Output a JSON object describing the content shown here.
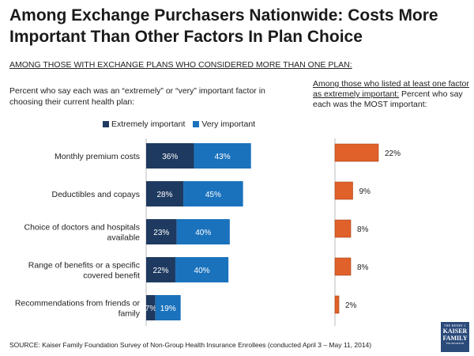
{
  "title": "Among Exchange Purchasers Nationwide: Costs More Important Than Other Factors In Plan Choice",
  "subhead": "AMONG THOSE WITH EXCHANGE PLANS WHO CONSIDERED MORE THAN ONE PLAN:",
  "left_desc": "Percent who say each was an “extremely” or “very” important factor in choosing their current health plan:",
  "right_desc_underlined": "Among those who listed at least one factor as extremely important:",
  "right_desc_rest": " Percent who say each was the MOST important:",
  "legend": [
    {
      "label": "Extremely important",
      "color": "#1f3a60"
    },
    {
      "label": "Very important",
      "color": "#1a72bd"
    }
  ],
  "footer": "SOURCE: Kaiser Family Foundation Survey of Non-Group Health Insurance Enrollees (conducted April 3 – May 11, 2014)",
  "logo": {
    "line1": "THE HENRY J.",
    "line2a": "KAISER",
    "line2b": "FAMILY",
    "line3": "FOUNDATION"
  },
  "chart_data": [
    {
      "type": "bar",
      "orientation": "horizontal",
      "stacked": true,
      "categories": [
        [
          "Monthly premium costs"
        ],
        [
          "Deductibles and copays"
        ],
        [
          "Choice of doctors and hospitals",
          "available"
        ],
        [
          "Range of benefits or a specific",
          "covered benefit"
        ],
        [
          "Recommendations from friends or",
          "family"
        ]
      ],
      "series": [
        {
          "name": "Extremely important",
          "color": "#1f3a60",
          "values": [
            36,
            28,
            23,
            22,
            7
          ]
        },
        {
          "name": "Very important",
          "color": "#1a72bd",
          "values": [
            43,
            45,
            40,
            40,
            19
          ]
        }
      ],
      "value_suffix": "%"
    },
    {
      "type": "bar",
      "orientation": "horizontal",
      "title": "MOST important",
      "series": [
        {
          "name": "Most important",
          "color": "#e0612a",
          "values": [
            22,
            9,
            8,
            8,
            2
          ]
        }
      ],
      "value_suffix": "%"
    }
  ]
}
